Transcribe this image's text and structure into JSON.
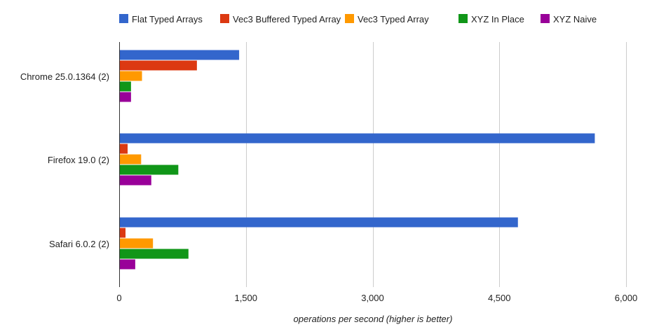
{
  "chart_data": {
    "type": "bar",
    "orientation": "horizontal",
    "categories": [
      "Chrome 25.0.1364 (2)",
      "Firefox 19.0 (2)",
      "Safari 6.0.2 (2)"
    ],
    "series": [
      {
        "name": "Flat Typed Arrays",
        "color": "#3366cc",
        "values": [
          1420,
          5630,
          4720
        ]
      },
      {
        "name": "Vec3 Buffered Typed Array",
        "color": "#dc3912",
        "values": [
          920,
          100,
          75
        ]
      },
      {
        "name": "Vec3 Typed Array",
        "color": "#ff9900",
        "values": [
          270,
          260,
          400
        ]
      },
      {
        "name": "XYZ In Place",
        "color": "#109618",
        "values": [
          140,
          700,
          820
        ]
      },
      {
        "name": "XYZ Naive",
        "color": "#990099",
        "values": [
          140,
          380,
          190
        ]
      }
    ],
    "xlabel": "operations per second (higher is better)",
    "ylabel": "",
    "xlim": [
      0,
      6000
    ],
    "xticks": [
      0,
      1500,
      3000,
      4500,
      6000
    ],
    "xtick_labels": [
      "0",
      "1,500",
      "3,000",
      "4,500",
      "6,000"
    ],
    "grid": true,
    "legend_position": "top"
  }
}
